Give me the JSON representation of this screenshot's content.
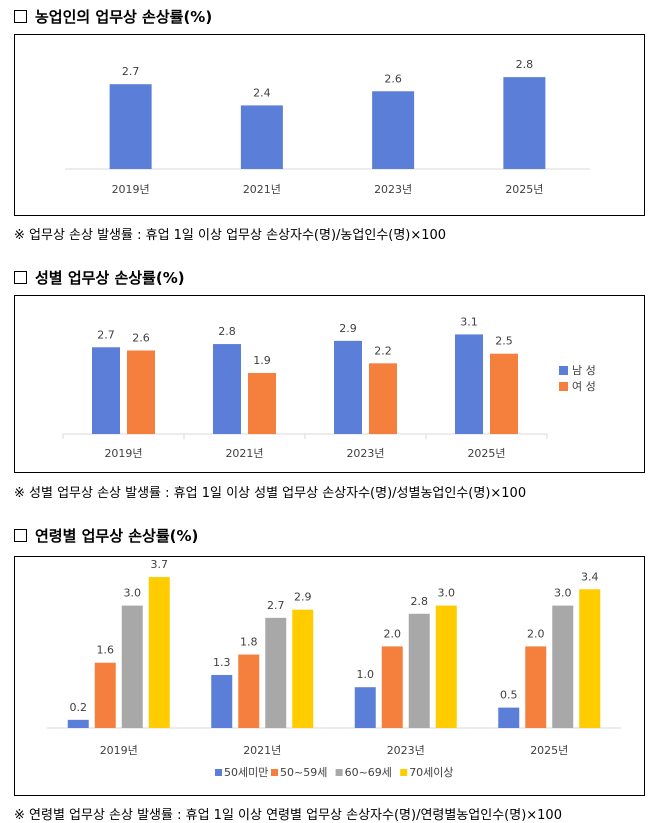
{
  "sections": [
    {
      "title": "농업인의 업무상 손상률(%)",
      "note": "※ 업무상 손상 발생률 : 휴업 1일 이상 업무상 손상자수(명)/농업인수(명)×100"
    },
    {
      "title": "성별 업무상 손상률(%)",
      "note": "※ 성별 업무상 손상 발생률 : 휴업 1일 이상 성별 업무상 손상자수(명)/성별농업인수(명)×100"
    },
    {
      "title": "연령별 업무상 손상률(%)",
      "note": "※ 연령별 업무상 손상 발생률 : 휴업 1일 이상 연령별 업무상 손상자수(명)/연령별농업인수(명)×100"
    }
  ],
  "chart_data": [
    {
      "type": "bar",
      "title": "농업인의 업무상 손상률(%)",
      "categories": [
        "2019년",
        "2021년",
        "2023년",
        "2025년"
      ],
      "series": [
        {
          "name": "",
          "color": "#5b7fd8",
          "values": [
            2.7,
            2.4,
            2.6,
            2.8
          ]
        }
      ],
      "ylim": [
        1.5,
        3.0
      ],
      "legend": "none",
      "grid": false
    },
    {
      "type": "bar",
      "title": "성별 업무상 손상률(%)",
      "categories": [
        "2019년",
        "2021년",
        "2023년",
        "2025년"
      ],
      "series": [
        {
          "name": "남 성",
          "color": "#5b7fd8",
          "values": [
            2.7,
            2.8,
            2.9,
            3.1
          ]
        },
        {
          "name": "여 성",
          "color": "#f5803e",
          "values": [
            2.6,
            1.9,
            2.2,
            2.5
          ]
        }
      ],
      "ylim": [
        0,
        3.3
      ],
      "legend": "right",
      "grid": false
    },
    {
      "type": "bar",
      "title": "연령별 업무상 손상률(%)",
      "categories": [
        "2019년",
        "2021년",
        "2023년",
        "2025년"
      ],
      "series": [
        {
          "name": "50세미만",
          "color": "#5b7fd8",
          "values": [
            0.2,
            1.3,
            1.0,
            0.5
          ]
        },
        {
          "name": "50~59세",
          "color": "#f5803e",
          "values": [
            1.6,
            1.8,
            2.0,
            2.0
          ]
        },
        {
          "name": "60~69세",
          "color": "#a8a8a8",
          "values": [
            3.0,
            2.7,
            2.8,
            3.0
          ]
        },
        {
          "name": "70세이상",
          "color": "#ffcc00",
          "values": [
            3.7,
            2.9,
            3.0,
            3.4
          ]
        }
      ],
      "ylim": [
        0,
        3.75
      ],
      "legend": "bottom",
      "grid": false
    }
  ]
}
